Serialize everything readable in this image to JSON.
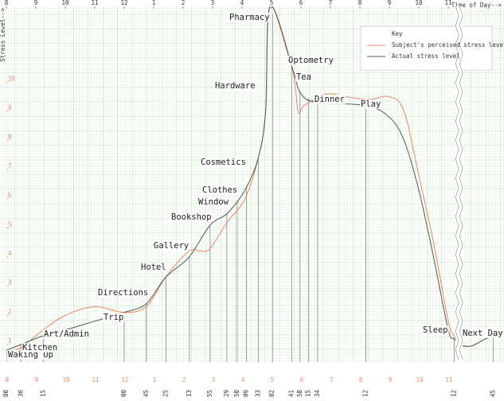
{
  "chart_data": {
    "type": "line",
    "x_label": "Time of Day-->",
    "y_label": "Stress Level-->",
    "legend_title": "Key",
    "xlim": [
      8,
      32.1
    ],
    "xbreak": [
      23.3,
      30.6
    ],
    "ylim": [
      0.4,
      12.6
    ],
    "yticks": [
      1,
      2,
      3,
      4,
      5,
      6,
      7,
      8,
      9,
      10
    ],
    "xticks": [
      8,
      9,
      10,
      11,
      12,
      {
        "value": 13,
        "label": "1"
      },
      {
        "value": 14,
        "label": "2"
      },
      {
        "value": 15,
        "label": "3"
      },
      {
        "value": 16,
        "label": "4"
      },
      {
        "value": 17,
        "label": "5"
      },
      {
        "value": 18,
        "label": "6"
      },
      {
        "value": 19,
        "label": "7"
      },
      {
        "value": 20,
        "label": "8"
      },
      {
        "value": 21,
        "label": "9"
      },
      {
        "value": 22,
        "label": "10"
      },
      {
        "value": 23,
        "label": "11"
      }
    ],
    "event_ticks": [
      {
        "value": 8,
        "label": "8.00"
      },
      {
        "value": 8.5,
        "label": "8.30"
      },
      {
        "value": 9.25,
        "label": "9.15"
      },
      {
        "value": 12,
        "label": "12.00"
      },
      {
        "value": 12.75,
        "label": "12.45"
      },
      {
        "value": 13.4167,
        "label": "1.25"
      },
      {
        "value": 14.2167,
        "label": "2.13"
      },
      {
        "value": 14.9167,
        "label": "2.55"
      },
      {
        "value": 15.4833,
        "label": "3.29"
      },
      {
        "value": 15.8333,
        "label": "3.50"
      },
      {
        "value": 16.15,
        "label": "4.09"
      },
      {
        "value": 16.55,
        "label": "4.33"
      },
      {
        "value": 17.0333,
        "label": "5.02"
      },
      {
        "value": 17.6833,
        "label": "5.41"
      },
      {
        "value": 17.9667,
        "label": "5.58"
      },
      {
        "value": 18.25,
        "label": "6.15"
      },
      {
        "value": 18.5667,
        "label": "6.34"
      },
      {
        "value": 20.2,
        "label": "8.12"
      },
      {
        "value": 23.2,
        "label": "11.12"
      },
      {
        "value": 31.75,
        "label": "7.45"
      }
    ],
    "series": [
      {
        "name": "Subject's perceived stress level",
        "color": "#e8866a",
        "x": [
          8,
          8.5,
          9.25,
          10,
          11,
          12,
          12.75,
          13.4,
          14.2,
          14.6,
          14.92,
          15.5,
          16.1,
          16.55,
          16.8,
          16.95,
          17.7,
          17.9,
          18.1,
          18.57,
          19,
          20.2,
          21,
          21.5,
          22,
          22.5,
          23,
          23.2,
          30.6,
          31,
          31.5,
          32.1
        ],
        "values": [
          0.7,
          0.9,
          1.5,
          2.0,
          2.3,
          2.1,
          2.3,
          3.3,
          4.2,
          4.2,
          4.3,
          5.2,
          6.0,
          7.4,
          9.0,
          12.6,
          10.5,
          9.0,
          9.2,
          9.45,
          9.6,
          9.4,
          9.5,
          9.0,
          6.8,
          4.5,
          1.8,
          1.3,
          1.0,
          0.95,
          1.2,
          1.4
        ]
      },
      {
        "name": "Actual stress level",
        "color": "#4d5b4d",
        "x": [
          8,
          8.5,
          9.25,
          10,
          11,
          12,
          12.75,
          13.4,
          14.2,
          14.92,
          15.5,
          16.1,
          16.55,
          16.8,
          16.95,
          17.7,
          18.0,
          18.57,
          20.2,
          21,
          21.5,
          22,
          22.5,
          23,
          23.2,
          30.6,
          31,
          31.5,
          32.1
        ],
        "values": [
          0.8,
          1.0,
          1.3,
          1.5,
          1.8,
          2.1,
          2.4,
          3.3,
          4.0,
          5.1,
          5.5,
          6.3,
          7.4,
          9.0,
          12.6,
          10.5,
          9.6,
          9.3,
          9.2,
          8.8,
          8.0,
          6.3,
          4.0,
          1.5,
          1.2,
          1.0,
          0.95,
          1.2,
          1.4
        ]
      }
    ],
    "annotations": [
      "Waking Up",
      "Kitchen",
      "Art/Admin",
      "Trip",
      "Directions",
      "Hotel",
      "Gallery",
      "Bookshop",
      "Window",
      "Clothes",
      "Cosmetics",
      "Hardware",
      "Pharmacy",
      "Optometry",
      "Tea",
      "Dinner",
      "Play",
      "Sleep",
      "Next Day"
    ]
  }
}
